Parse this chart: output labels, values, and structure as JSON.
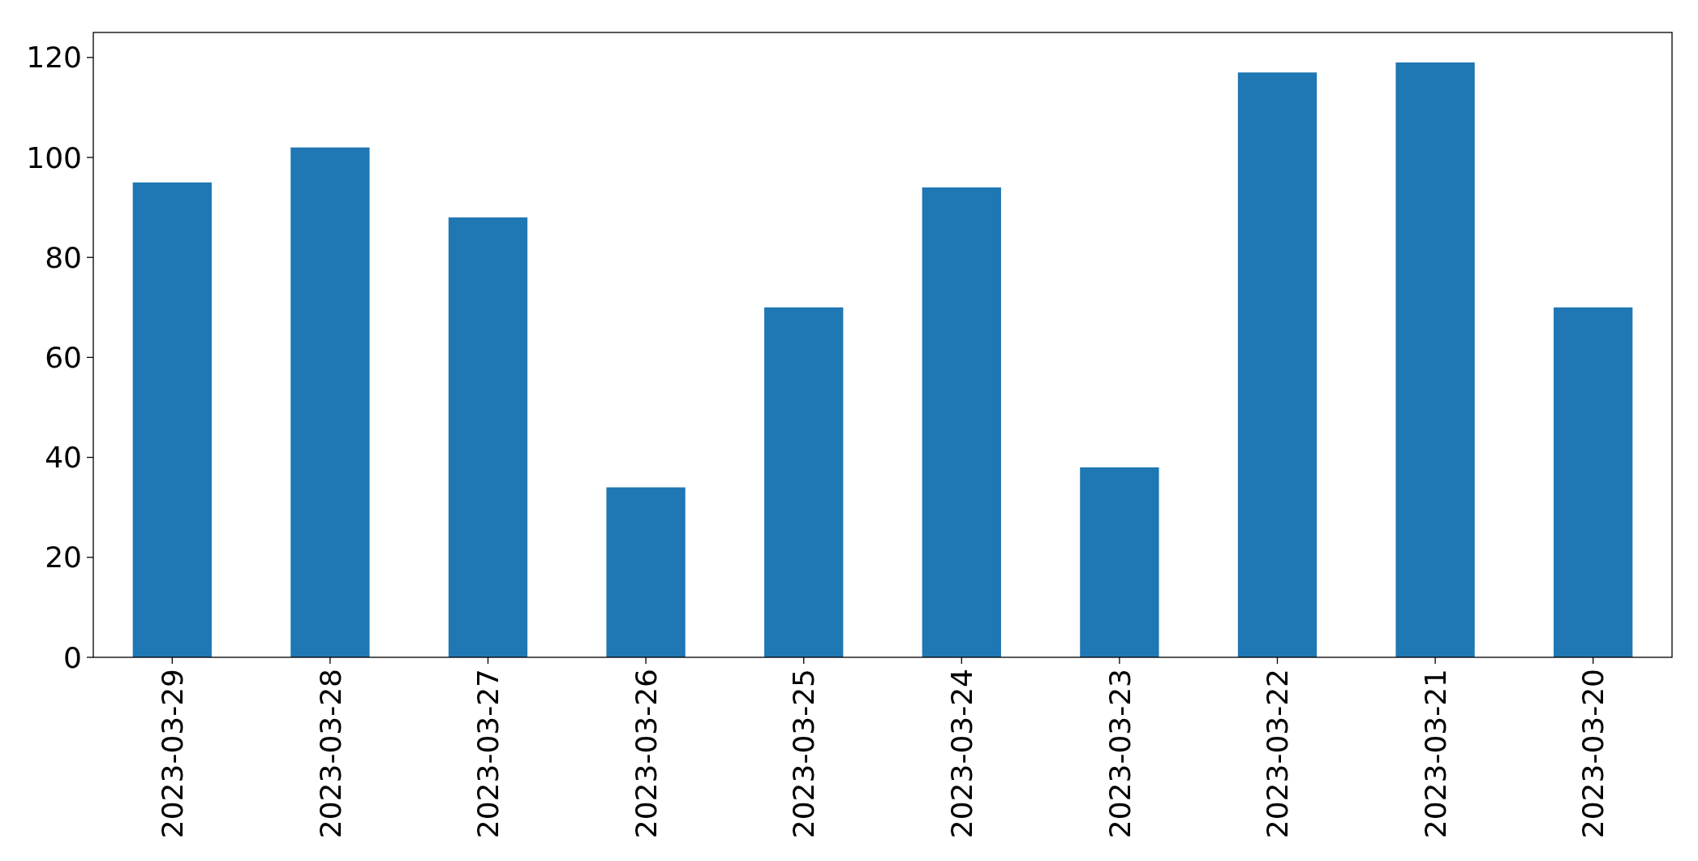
{
  "chart_data": {
    "type": "bar",
    "categories": [
      "2023-03-29",
      "2023-03-28",
      "2023-03-27",
      "2023-03-26",
      "2023-03-25",
      "2023-03-24",
      "2023-03-23",
      "2023-03-22",
      "2023-03-21",
      "2023-03-20"
    ],
    "values": [
      95,
      102,
      88,
      34,
      70,
      94,
      38,
      117,
      119,
      70
    ],
    "color": "#1f77b4",
    "ylim": [
      0,
      125
    ],
    "yticks": [
      0,
      20,
      40,
      60,
      80,
      100,
      120
    ],
    "grid": false
  }
}
